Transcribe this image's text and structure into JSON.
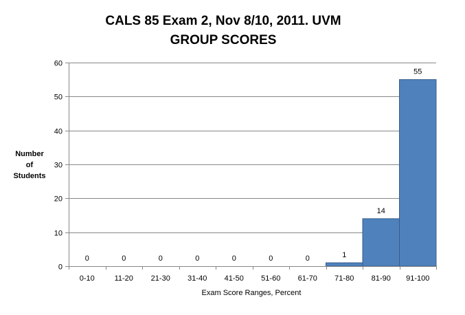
{
  "chart_data": {
    "type": "bar",
    "title_lines": [
      "CALS 85 Exam 2, Nov 8/10, 2011. UVM",
      "GROUP SCORES"
    ],
    "ylabel_lines": [
      "Number",
      "of",
      "Students"
    ],
    "xlabel": "Exam Score Ranges, Percent",
    "categories": [
      "0-10",
      "11-20",
      "21-30",
      "31-40",
      "41-50",
      "51-60",
      "61-70",
      "71-80",
      "81-90",
      "91-100"
    ],
    "values": [
      0,
      0,
      0,
      0,
      0,
      0,
      0,
      1,
      14,
      55
    ],
    "ylim": [
      0,
      60
    ],
    "yticks": [
      0,
      10,
      20,
      30,
      40,
      50,
      60
    ],
    "grid": true,
    "legend": "none",
    "bar_color": "#4F81BD",
    "bar_edge_color": "#385D8A",
    "gridline_color": "#878787"
  }
}
